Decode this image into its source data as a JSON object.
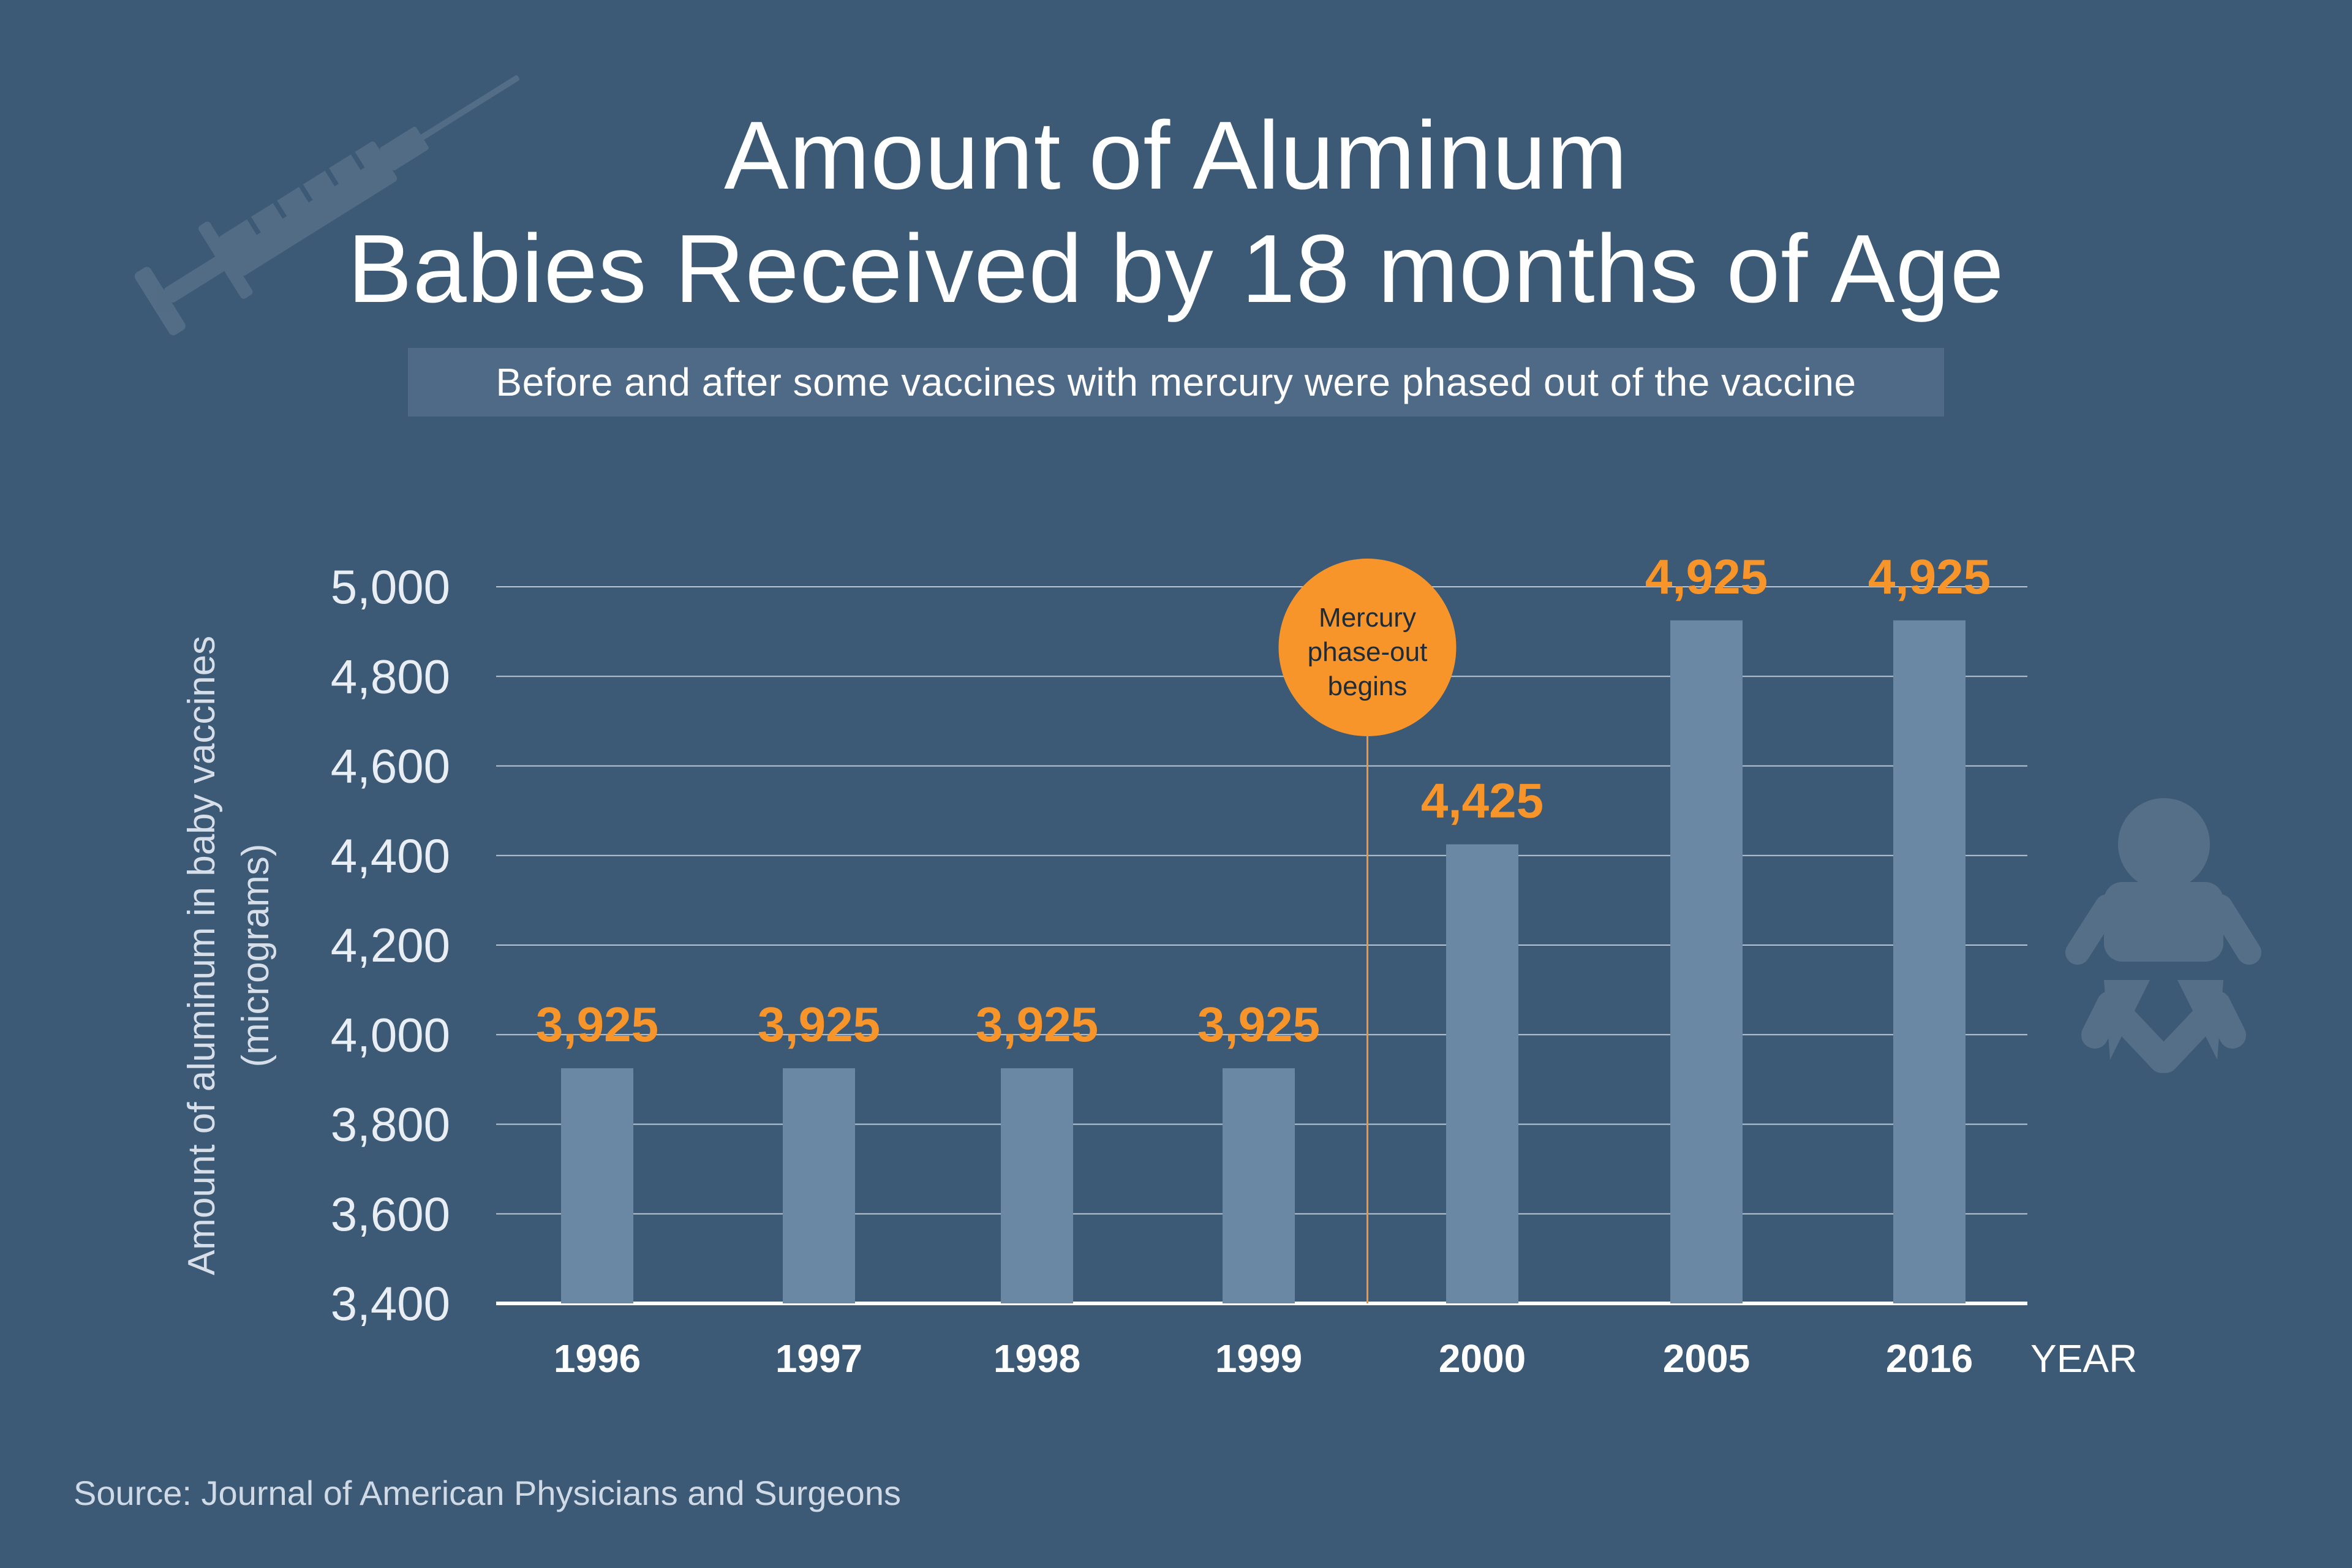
{
  "header": {
    "title_line1": "Amount of Aluminum",
    "title_line2": "Babies Received by 18 months of Age",
    "subtitle": "Before and after some vaccines with mercury were phased out of the vaccine"
  },
  "source": "Source: Journal of American Physicians and Surgeons",
  "icons": {
    "decor_left": "syringe-icon",
    "decor_right": "baby-icon"
  },
  "colors": {
    "background": "#3c5a75",
    "bar": "#6a88a4",
    "value_label": "#f7952b",
    "marker_circle": "#f7952b",
    "gridline": "#b9c6d4"
  },
  "chart_data": {
    "type": "bar",
    "title": "Amount of Aluminum Babies Received by 18 months of Age",
    "subtitle": "Before and after some vaccines with mercury were phased out of the vaccine",
    "categories": [
      "1996",
      "1997",
      "1998",
      "1999",
      "2000",
      "2005",
      "2016"
    ],
    "values": [
      3925,
      3925,
      3925,
      3925,
      4425,
      4925,
      4925
    ],
    "value_labels": [
      "3,925",
      "3,925",
      "3,925",
      "3,925",
      "4,425",
      "4,925",
      "4,925"
    ],
    "xlabel": "YEAR",
    "ylabel_line1": "Amount of aluminum in baby vaccines",
    "ylabel_line2": "(micrograms)",
    "ylim": [
      3400,
      5000
    ],
    "yticks": [
      3400,
      3600,
      3800,
      4000,
      4200,
      4400,
      4600,
      4800,
      5000
    ],
    "ytick_labels": [
      "3,400",
      "3,600",
      "3,800",
      "4,000",
      "4,200",
      "4,400",
      "4,600",
      "4,800",
      "5,000"
    ],
    "grid": true,
    "annotation": {
      "after_category": "1999",
      "lines": [
        "Mercury",
        "phase-out",
        "begins"
      ]
    }
  }
}
